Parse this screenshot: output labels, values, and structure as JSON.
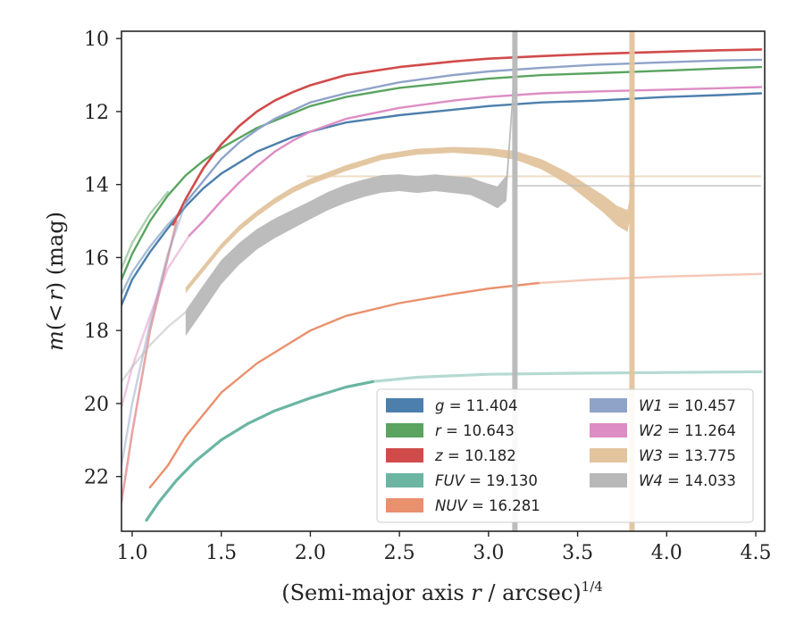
{
  "chart_data": {
    "type": "line",
    "xlabel": "(Semi-major axis r / arcsec)^1/4",
    "xlabel_parts": {
      "prefix": "(Semi-major axis ",
      "var": "r",
      "suffix": " / arcsec)",
      "exponent": "1/4"
    },
    "ylabel": "m(<r) (mag)",
    "ylabel_parts": {
      "m": "m",
      "open": "(",
      "lt": "<",
      "r": "r",
      "close": ") (mag)"
    },
    "xlim": [
      0.94,
      4.55
    ],
    "ylim": [
      23.5,
      9.8
    ],
    "y_inverted": true,
    "x_ticks": [
      1.0,
      1.5,
      2.0,
      2.5,
      3.0,
      3.5,
      4.0,
      4.5
    ],
    "x_tick_labels": [
      "1.0",
      "1.5",
      "2.0",
      "2.5",
      "3.0",
      "3.5",
      "4.0",
      "4.5"
    ],
    "y_ticks": [
      10,
      12,
      14,
      16,
      18,
      20,
      22
    ],
    "y_tick_labels": [
      "10",
      "12",
      "14",
      "16",
      "18",
      "20",
      "22"
    ],
    "grid": false,
    "legend_location": "lower right",
    "legend_columns": 2,
    "series": [
      {
        "name": "g = 11.404",
        "label_var": "g",
        "label_value": "11.404",
        "color": "#4c7fad",
        "width": 2.4,
        "x": [
          0.94,
          1.0,
          1.1,
          1.2,
          1.3,
          1.4,
          1.5,
          1.7,
          1.9,
          2.0,
          2.2,
          2.5,
          2.8,
          3.0,
          3.3,
          3.6,
          4.0,
          4.3,
          4.53
        ],
        "y": [
          17.3,
          16.6,
          15.85,
          15.2,
          14.6,
          14.1,
          13.7,
          13.1,
          12.7,
          12.55,
          12.3,
          12.1,
          11.95,
          11.85,
          11.75,
          11.7,
          11.6,
          11.55,
          11.5
        ],
        "faint_extension": {
          "x": [
            0.94,
            1.0,
            1.1,
            1.2,
            1.28
          ],
          "y": [
            17.0,
            16.4,
            15.7,
            15.1,
            14.7
          ]
        }
      },
      {
        "name": "r = 10.643",
        "label_var": "r",
        "label_value": "10.643",
        "color": "#5aa460",
        "width": 2.4,
        "x": [
          0.94,
          1.0,
          1.1,
          1.2,
          1.3,
          1.4,
          1.5,
          1.7,
          1.9,
          2.0,
          2.2,
          2.5,
          2.8,
          3.0,
          3.3,
          3.6,
          4.0,
          4.3,
          4.53
        ],
        "y": [
          16.6,
          15.9,
          15.0,
          14.3,
          13.75,
          13.35,
          13.0,
          12.45,
          12.05,
          11.85,
          11.6,
          11.35,
          11.2,
          11.1,
          11.0,
          10.95,
          10.88,
          10.82,
          10.78
        ],
        "faint_extension": {
          "x": [
            0.94,
            1.0,
            1.1,
            1.2
          ],
          "y": [
            16.3,
            15.6,
            14.8,
            14.2
          ]
        }
      },
      {
        "name": "z = 10.182",
        "label_var": "z",
        "label_value": "10.182",
        "color": "#d14b4b",
        "width": 2.6,
        "x": [
          1.23,
          1.3,
          1.4,
          1.5,
          1.6,
          1.7,
          1.8,
          1.9,
          2.0,
          2.2,
          2.5,
          2.8,
          3.0,
          3.3,
          3.6,
          4.0,
          4.3,
          4.53
        ],
        "y": [
          15.1,
          14.4,
          13.55,
          12.9,
          12.4,
          12.0,
          11.7,
          11.47,
          11.28,
          11.0,
          10.78,
          10.63,
          10.55,
          10.48,
          10.42,
          10.36,
          10.32,
          10.3
        ],
        "faint_extension": {
          "x": [
            0.94,
            1.0,
            1.1,
            1.2,
            1.25
          ],
          "y": [
            22.7,
            20.8,
            18.0,
            16.0,
            15.0
          ]
        }
      },
      {
        "name": "FUV = 19.130",
        "label_var": "FUV",
        "label_value": "19.130",
        "color": "#6bb5a3",
        "width": 3.2,
        "x": [
          1.08,
          1.15,
          1.25,
          1.35,
          1.5,
          1.65,
          1.8,
          2.0,
          2.2,
          2.35
        ],
        "y": [
          23.2,
          22.7,
          22.1,
          21.6,
          21.0,
          20.55,
          20.2,
          19.85,
          19.55,
          19.4
        ],
        "faint_extension": {
          "x": [
            2.35,
            2.6,
            3.0,
            3.5,
            4.0,
            4.53
          ],
          "y": [
            19.4,
            19.28,
            19.2,
            19.17,
            19.15,
            19.13
          ]
        }
      },
      {
        "name": "NUV = 16.281",
        "label_var": "NUV",
        "label_value": "16.281",
        "color": "#e9906d",
        "width": 2.4,
        "x": [
          1.1,
          1.2,
          1.3,
          1.4,
          1.5,
          1.7,
          1.9,
          2.0,
          2.2,
          2.5,
          2.8,
          3.0,
          3.28
        ],
        "y": [
          22.3,
          21.7,
          20.9,
          20.3,
          19.7,
          18.9,
          18.3,
          18.0,
          17.6,
          17.25,
          17.0,
          16.85,
          16.7
        ],
        "faint_extension": {
          "x": [
            3.28,
            3.6,
            4.0,
            4.3,
            4.53
          ],
          "y": [
            16.7,
            16.6,
            16.52,
            16.48,
            16.45
          ]
        }
      },
      {
        "name": "W1 = 10.457",
        "label_var": "W1",
        "label_value": "10.457",
        "color": "#8fa3c9",
        "width": 2.4,
        "x": [
          1.3,
          1.4,
          1.5,
          1.6,
          1.7,
          1.8,
          2.0,
          2.2,
          2.5,
          2.8,
          3.0,
          3.3,
          3.6,
          4.0,
          4.3,
          4.53
        ],
        "y": [
          14.5,
          13.9,
          13.3,
          12.85,
          12.5,
          12.2,
          11.75,
          11.5,
          11.2,
          11.0,
          10.9,
          10.8,
          10.72,
          10.65,
          10.6,
          10.58
        ],
        "faint_extension": {
          "x": [
            0.94,
            1.0,
            1.1,
            1.2,
            1.3
          ],
          "y": [
            21.7,
            20.0,
            17.8,
            15.9,
            14.5
          ]
        }
      },
      {
        "name": "W2 = 11.264",
        "label_var": "W2",
        "label_value": "11.264",
        "color": "#dd8dc4",
        "width": 2.4,
        "x": [
          1.32,
          1.4,
          1.5,
          1.6,
          1.7,
          1.8,
          1.9,
          2.0,
          2.2,
          2.5,
          2.8,
          3.0,
          3.3,
          3.6,
          4.0,
          4.3,
          4.53
        ],
        "y": [
          15.4,
          15.0,
          14.45,
          13.95,
          13.5,
          13.1,
          12.8,
          12.55,
          12.2,
          11.9,
          11.7,
          11.6,
          11.5,
          11.45,
          11.4,
          11.36,
          11.33
        ],
        "faint_extension": {
          "x": [
            0.94,
            1.0,
            1.1,
            1.2,
            1.32
          ],
          "y": [
            20.1,
            19.0,
            17.6,
            16.3,
            15.4
          ]
        }
      },
      {
        "name": "W3 = 13.775",
        "label_var": "W3",
        "label_value": "13.775",
        "color": "#e2c49d",
        "width": 2.4,
        "x": [
          1.3,
          1.4,
          1.5,
          1.6,
          1.7,
          1.8,
          1.9,
          2.0,
          2.2,
          2.4,
          2.6,
          2.8,
          3.0,
          3.15,
          3.3,
          3.45,
          3.55,
          3.65,
          3.72,
          3.78,
          3.8,
          3.82
        ],
        "y": [
          16.9,
          16.3,
          15.7,
          15.2,
          14.8,
          14.45,
          14.15,
          13.92,
          13.55,
          13.25,
          13.1,
          13.05,
          13.1,
          13.2,
          13.45,
          13.85,
          14.2,
          14.55,
          14.85,
          15.0,
          14.5,
          10.0
        ],
        "band_half_width": [
          0.08,
          0.08,
          0.08,
          0.08,
          0.08,
          0.08,
          0.08,
          0.08,
          0.08,
          0.08,
          0.08,
          0.08,
          0.1,
          0.12,
          0.14,
          0.17,
          0.2,
          0.24,
          0.27,
          0.3,
          0.3,
          0.3
        ],
        "vertical_band_x": 3.805,
        "asymptote": 13.775,
        "asymptote_x_range": [
          1.98,
          4.53
        ]
      },
      {
        "name": "W4 = 14.033",
        "label_var": "W4",
        "label_value": "14.033",
        "color": "#b8b8b8",
        "width": 2.4,
        "x": [
          1.3,
          1.4,
          1.5,
          1.6,
          1.7,
          1.8,
          1.9,
          2.0,
          2.1,
          2.2,
          2.3,
          2.4,
          2.5,
          2.6,
          2.7,
          2.8,
          2.9,
          2.95,
          3.0,
          3.05,
          3.1,
          3.13,
          3.15
        ],
        "y": [
          17.8,
          17.1,
          16.4,
          15.9,
          15.5,
          15.2,
          14.95,
          14.7,
          14.45,
          14.25,
          14.1,
          13.98,
          13.95,
          14.0,
          13.95,
          14.0,
          14.05,
          14.15,
          14.25,
          14.35,
          14.1,
          12.0,
          9.9
        ],
        "band_half_width": [
          0.35,
          0.35,
          0.33,
          0.3,
          0.28,
          0.27,
          0.26,
          0.25,
          0.25,
          0.25,
          0.24,
          0.24,
          0.23,
          0.23,
          0.23,
          0.23,
          0.24,
          0.25,
          0.27,
          0.3,
          0.35,
          0.3,
          0.2
        ],
        "vertical_band_x": 3.148,
        "asymptote": 14.033,
        "asymptote_x_range": [
          3.15,
          4.53
        ],
        "faint_extension": {
          "x": [
            0.94,
            1.0,
            1.1,
            1.2,
            1.3
          ],
          "y": [
            19.4,
            19.0,
            18.4,
            17.9,
            17.5
          ]
        }
      }
    ]
  }
}
